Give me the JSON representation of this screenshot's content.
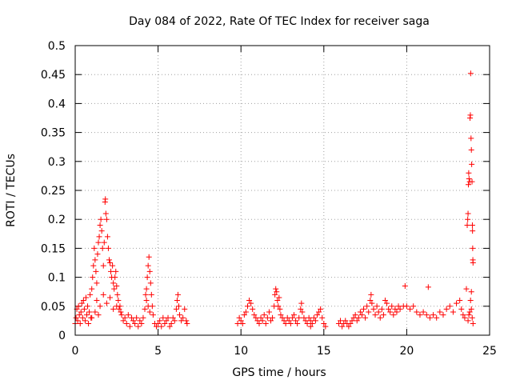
{
  "chart_data": {
    "type": "scatter",
    "title": "Day 084 of 2022, Rate Of TEC Index for receiver saga",
    "xlabel": "GPS time / hours",
    "ylabel": "ROTI / TECUs",
    "xlim": [
      0,
      25
    ],
    "ylim": [
      0,
      0.5
    ],
    "xticks": [
      0,
      5,
      10,
      15,
      20,
      25
    ],
    "yticks": [
      0,
      0.05,
      0.1,
      0.15,
      0.2,
      0.25,
      0.3,
      0.35,
      0.4,
      0.45,
      0.5
    ],
    "xtick_labels": [
      "0",
      "5",
      "10",
      "15",
      "20",
      "25"
    ],
    "ytick_labels": [
      "0",
      "0.05",
      "0.1",
      "0.15",
      "0.2",
      "0.25",
      "0.3",
      "0.35",
      "0.4",
      "0.45",
      "0.5"
    ],
    "grid": true,
    "marker": "+",
    "color": "#ff0000",
    "points": [
      [
        0.0,
        0.02
      ],
      [
        0.05,
        0.03
      ],
      [
        0.1,
        0.045
      ],
      [
        0.15,
        0.025
      ],
      [
        0.2,
        0.05
      ],
      [
        0.25,
        0.035
      ],
      [
        0.3,
        0.02
      ],
      [
        0.35,
        0.04
      ],
      [
        0.4,
        0.055
      ],
      [
        0.45,
        0.03
      ],
      [
        0.5,
        0.06
      ],
      [
        0.55,
        0.045
      ],
      [
        0.6,
        0.025
      ],
      [
        0.65,
        0.065
      ],
      [
        0.7,
        0.035
      ],
      [
        0.75,
        0.05
      ],
      [
        0.8,
        0.02
      ],
      [
        0.85,
        0.04
      ],
      [
        0.9,
        0.07
      ],
      [
        0.95,
        0.03
      ],
      [
        1.0,
        0.08
      ],
      [
        1.05,
        0.1
      ],
      [
        1.1,
        0.12
      ],
      [
        1.15,
        0.15
      ],
      [
        1.2,
        0.13
      ],
      [
        1.25,
        0.11
      ],
      [
        1.3,
        0.09
      ],
      [
        1.35,
        0.14
      ],
      [
        1.4,
        0.16
      ],
      [
        1.45,
        0.17
      ],
      [
        1.5,
        0.19
      ],
      [
        1.55,
        0.2
      ],
      [
        1.6,
        0.18
      ],
      [
        1.65,
        0.15
      ],
      [
        1.7,
        0.12
      ],
      [
        1.75,
        0.16
      ],
      [
        1.8,
        0.23
      ],
      [
        1.82,
        0.235
      ],
      [
        1.85,
        0.21
      ],
      [
        1.9,
        0.2
      ],
      [
        1.95,
        0.17
      ],
      [
        2.0,
        0.15
      ],
      [
        2.05,
        0.13
      ],
      [
        2.1,
        0.125
      ],
      [
        2.15,
        0.11
      ],
      [
        2.2,
        0.1
      ],
      [
        2.25,
        0.12
      ],
      [
        2.3,
        0.09
      ],
      [
        2.35,
        0.08
      ],
      [
        2.4,
        0.1
      ],
      [
        2.45,
        0.11
      ],
      [
        2.5,
        0.085
      ],
      [
        2.55,
        0.07
      ],
      [
        2.6,
        0.06
      ],
      [
        2.65,
        0.045
      ],
      [
        2.7,
        0.05
      ],
      [
        2.75,
        0.04
      ],
      [
        2.8,
        0.035
      ],
      [
        2.9,
        0.025
      ],
      [
        3.0,
        0.03
      ],
      [
        1.2,
        0.04
      ],
      [
        1.3,
        0.06
      ],
      [
        1.5,
        0.05
      ],
      [
        1.7,
        0.07
      ],
      [
        1.9,
        0.055
      ],
      [
        2.1,
        0.065
      ],
      [
        2.3,
        0.045
      ],
      [
        2.5,
        0.05
      ],
      [
        1.0,
        0.03
      ],
      [
        1.4,
        0.035
      ],
      [
        3.1,
        0.02
      ],
      [
        3.2,
        0.035
      ],
      [
        3.3,
        0.015
      ],
      [
        3.4,
        0.03
      ],
      [
        3.5,
        0.025
      ],
      [
        3.6,
        0.02
      ],
      [
        3.7,
        0.03
      ],
      [
        3.8,
        0.015
      ],
      [
        3.9,
        0.025
      ],
      [
        4.0,
        0.02
      ],
      [
        4.1,
        0.03
      ],
      [
        4.2,
        0.045
      ],
      [
        4.25,
        0.07
      ],
      [
        4.3,
        0.08
      ],
      [
        4.35,
        0.1
      ],
      [
        4.4,
        0.12
      ],
      [
        4.45,
        0.135
      ],
      [
        4.5,
        0.11
      ],
      [
        4.55,
        0.09
      ],
      [
        4.6,
        0.07
      ],
      [
        4.65,
        0.05
      ],
      [
        4.7,
        0.035
      ],
      [
        4.3,
        0.06
      ],
      [
        4.4,
        0.05
      ],
      [
        4.5,
        0.04
      ],
      [
        4.8,
        0.02
      ],
      [
        4.9,
        0.015
      ],
      [
        5.0,
        0.02
      ],
      [
        5.1,
        0.025
      ],
      [
        5.2,
        0.015
      ],
      [
        5.3,
        0.03
      ],
      [
        5.4,
        0.02
      ],
      [
        5.5,
        0.025
      ],
      [
        5.6,
        0.03
      ],
      [
        5.7,
        0.015
      ],
      [
        5.8,
        0.02
      ],
      [
        5.9,
        0.03
      ],
      [
        6.0,
        0.025
      ],
      [
        6.1,
        0.045
      ],
      [
        6.15,
        0.06
      ],
      [
        6.2,
        0.07
      ],
      [
        6.25,
        0.05
      ],
      [
        6.3,
        0.035
      ],
      [
        6.4,
        0.025
      ],
      [
        6.5,
        0.03
      ],
      [
        6.6,
        0.045
      ],
      [
        6.7,
        0.025
      ],
      [
        6.75,
        0.02
      ],
      [
        9.8,
        0.02
      ],
      [
        9.9,
        0.03
      ],
      [
        10.0,
        0.025
      ],
      [
        10.1,
        0.02
      ],
      [
        10.2,
        0.035
      ],
      [
        10.3,
        0.04
      ],
      [
        10.4,
        0.05
      ],
      [
        10.5,
        0.06
      ],
      [
        10.6,
        0.055
      ],
      [
        10.7,
        0.045
      ],
      [
        10.8,
        0.035
      ],
      [
        10.9,
        0.03
      ],
      [
        11.0,
        0.025
      ],
      [
        11.1,
        0.02
      ],
      [
        11.2,
        0.03
      ],
      [
        11.3,
        0.025
      ],
      [
        11.4,
        0.035
      ],
      [
        11.5,
        0.02
      ],
      [
        11.6,
        0.03
      ],
      [
        11.7,
        0.04
      ],
      [
        11.8,
        0.025
      ],
      [
        11.9,
        0.03
      ],
      [
        12.0,
        0.05
      ],
      [
        12.05,
        0.07
      ],
      [
        12.1,
        0.08
      ],
      [
        12.15,
        0.075
      ],
      [
        12.2,
        0.06
      ],
      [
        12.25,
        0.05
      ],
      [
        12.3,
        0.065
      ],
      [
        12.35,
        0.045
      ],
      [
        12.4,
        0.035
      ],
      [
        12.5,
        0.03
      ],
      [
        12.6,
        0.025
      ],
      [
        12.7,
        0.02
      ],
      [
        12.8,
        0.03
      ],
      [
        12.9,
        0.025
      ],
      [
        13.0,
        0.02
      ],
      [
        13.1,
        0.03
      ],
      [
        13.2,
        0.035
      ],
      [
        13.3,
        0.025
      ],
      [
        13.4,
        0.02
      ],
      [
        13.5,
        0.03
      ],
      [
        13.6,
        0.045
      ],
      [
        13.65,
        0.055
      ],
      [
        13.7,
        0.04
      ],
      [
        13.8,
        0.03
      ],
      [
        13.9,
        0.025
      ],
      [
        14.0,
        0.02
      ],
      [
        14.1,
        0.03
      ],
      [
        14.2,
        0.025
      ],
      [
        14.3,
        0.02
      ],
      [
        14.4,
        0.03
      ],
      [
        14.5,
        0.025
      ],
      [
        14.6,
        0.035
      ],
      [
        14.7,
        0.04
      ],
      [
        14.8,
        0.045
      ],
      [
        14.9,
        0.03
      ],
      [
        15.0,
        0.02
      ],
      [
        15.1,
        0.015
      ],
      [
        14.2,
        0.015
      ],
      [
        15.9,
        0.02
      ],
      [
        16.0,
        0.025
      ],
      [
        16.1,
        0.015
      ],
      [
        16.2,
        0.02
      ],
      [
        16.3,
        0.025
      ],
      [
        16.4,
        0.02
      ],
      [
        16.5,
        0.015
      ],
      [
        16.6,
        0.02
      ],
      [
        16.7,
        0.025
      ],
      [
        16.8,
        0.03
      ],
      [
        16.9,
        0.035
      ],
      [
        17.0,
        0.025
      ],
      [
        17.1,
        0.03
      ],
      [
        17.2,
        0.04
      ],
      [
        17.3,
        0.035
      ],
      [
        17.4,
        0.045
      ],
      [
        17.5,
        0.03
      ],
      [
        17.6,
        0.05
      ],
      [
        17.7,
        0.04
      ],
      [
        17.8,
        0.06
      ],
      [
        17.85,
        0.07
      ],
      [
        17.9,
        0.055
      ],
      [
        18.0,
        0.045
      ],
      [
        18.1,
        0.035
      ],
      [
        18.2,
        0.05
      ],
      [
        18.3,
        0.04
      ],
      [
        18.4,
        0.03
      ],
      [
        18.5,
        0.045
      ],
      [
        18.6,
        0.035
      ],
      [
        18.7,
        0.06
      ],
      [
        18.8,
        0.055
      ],
      [
        18.9,
        0.045
      ],
      [
        19.0,
        0.04
      ],
      [
        19.1,
        0.05
      ],
      [
        19.2,
        0.035
      ],
      [
        19.3,
        0.045
      ],
      [
        19.4,
        0.04
      ],
      [
        19.5,
        0.05
      ],
      [
        19.6,
        0.045
      ],
      [
        19.8,
        0.05
      ],
      [
        19.9,
        0.085
      ],
      [
        20.0,
        0.05
      ],
      [
        20.2,
        0.045
      ],
      [
        20.4,
        0.05
      ],
      [
        20.6,
        0.04
      ],
      [
        20.8,
        0.035
      ],
      [
        21.0,
        0.04
      ],
      [
        21.2,
        0.035
      ],
      [
        21.3,
        0.083
      ],
      [
        21.4,
        0.03
      ],
      [
        21.6,
        0.035
      ],
      [
        21.8,
        0.03
      ],
      [
        22.0,
        0.04
      ],
      [
        22.2,
        0.035
      ],
      [
        22.4,
        0.045
      ],
      [
        22.6,
        0.05
      ],
      [
        22.8,
        0.04
      ],
      [
        23.0,
        0.055
      ],
      [
        23.2,
        0.06
      ],
      [
        23.3,
        0.045
      ],
      [
        23.4,
        0.035
      ],
      [
        23.5,
        0.03
      ],
      [
        23.6,
        0.08
      ],
      [
        23.65,
        0.19
      ],
      [
        23.68,
        0.2
      ],
      [
        23.7,
        0.21
      ],
      [
        23.72,
        0.26
      ],
      [
        23.74,
        0.28
      ],
      [
        23.76,
        0.27
      ],
      [
        23.8,
        0.265
      ],
      [
        23.82,
        0.375
      ],
      [
        23.84,
        0.38
      ],
      [
        23.86,
        0.452
      ],
      [
        23.88,
        0.34
      ],
      [
        23.9,
        0.32
      ],
      [
        23.92,
        0.295
      ],
      [
        23.94,
        0.265
      ],
      [
        23.96,
        0.19
      ],
      [
        23.97,
        0.18
      ],
      [
        23.98,
        0.15
      ],
      [
        23.99,
        0.13
      ],
      [
        24.0,
        0.125
      ],
      [
        23.9,
        0.075
      ],
      [
        23.85,
        0.06
      ],
      [
        23.8,
        0.04
      ],
      [
        23.95,
        0.03
      ],
      [
        24.0,
        0.02
      ],
      [
        23.7,
        0.025
      ],
      [
        23.75,
        0.035
      ],
      [
        23.9,
        0.045
      ]
    ]
  }
}
